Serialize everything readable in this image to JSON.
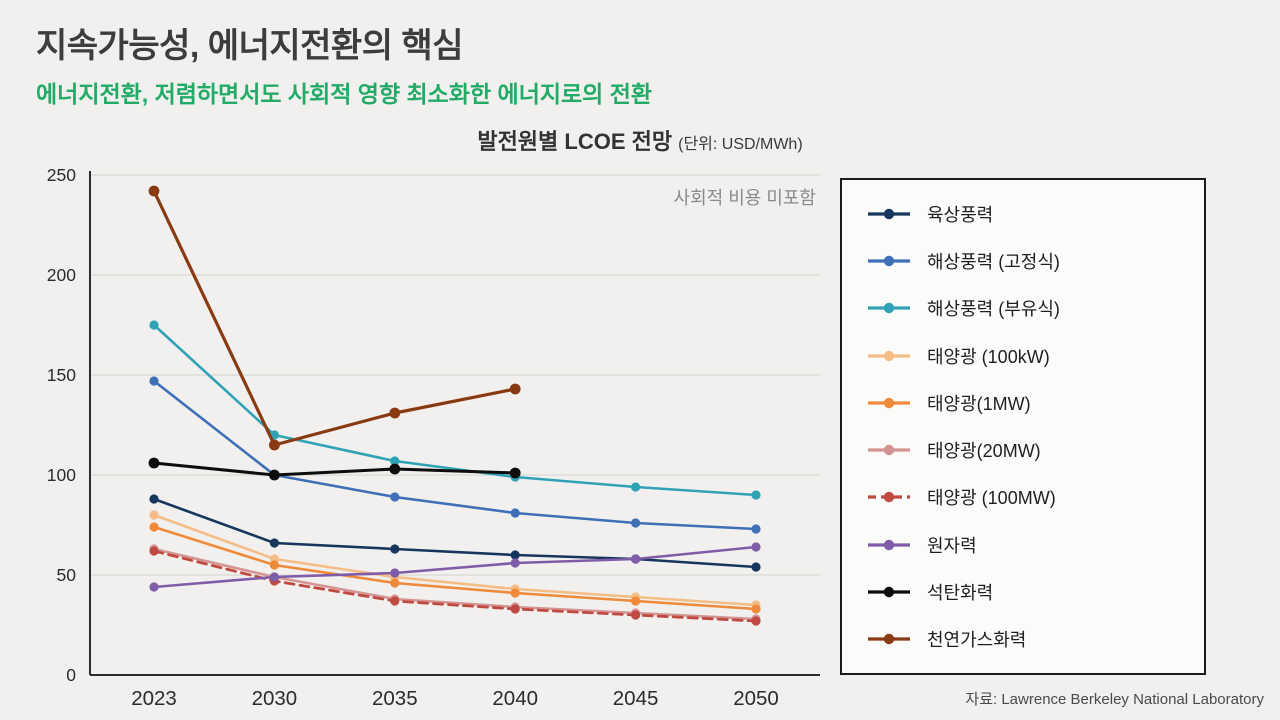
{
  "header": {
    "title": "지속가능성, 에너지전환의 핵심",
    "subtitle": "에너지전환, 저렴하면서도 사회적 영향 최소화한 에너지로의 전환"
  },
  "chart": {
    "title": "발전원별 LCOE 전망",
    "unit": "(단위: USD/MWh)",
    "annotation": "사회적 비용 미포함"
  },
  "source": "자료: Lawrence Berkeley National Laboratory",
  "colors": {
    "background": "#f1f0ee",
    "grid": "#d9d8d5",
    "axis": "#2b2b2b",
    "tick_label": "#2b2b2b",
    "annotation": "#8a8a8a"
  },
  "chart_data": {
    "type": "line",
    "title": "발전원별 LCOE 전망 (단위: USD/MWh)",
    "x": [
      "2023",
      "2030",
      "2035",
      "2040",
      "2045",
      "2050"
    ],
    "ylim": [
      0,
      250
    ],
    "yticks": [
      0,
      50,
      100,
      150,
      200,
      250
    ],
    "grid": true,
    "legend_position": "right",
    "annotation": "사회적 비용 미포함",
    "series": [
      {
        "name": "육상풍력",
        "color": "#17365d",
        "dash": false,
        "lw": 2.6,
        "values": [
          88,
          66,
          63,
          60,
          58,
          54
        ]
      },
      {
        "name": "해상풍력 (고정식)",
        "color": "#3f6fb7",
        "dash": false,
        "lw": 2.6,
        "values": [
          147,
          100,
          89,
          81,
          76,
          73
        ]
      },
      {
        "name": "해상풍력 (부유식)",
        "color": "#2fa3b5",
        "dash": false,
        "lw": 2.6,
        "values": [
          175,
          120,
          107,
          99,
          94,
          90
        ]
      },
      {
        "name": "태양광 (100kW)",
        "color": "#f5bd86",
        "dash": false,
        "lw": 2.6,
        "values": [
          80,
          58,
          49,
          43,
          39,
          35
        ]
      },
      {
        "name": "태양광(1MW)",
        "color": "#ee8a3a",
        "dash": false,
        "lw": 2.6,
        "values": [
          74,
          55,
          46,
          41,
          37,
          33
        ]
      },
      {
        "name": "태양광(20MW)",
        "color": "#d49592",
        "dash": false,
        "lw": 2.6,
        "values": [
          63,
          49,
          38,
          34,
          31,
          28
        ]
      },
      {
        "name": "태양광 (100MW)",
        "color": "#bf4a42",
        "dash": true,
        "lw": 2.8,
        "values": [
          62,
          47,
          37,
          33,
          30,
          27
        ]
      },
      {
        "name": "원자력",
        "color": "#7f5ca8",
        "dash": false,
        "lw": 2.6,
        "values": [
          44,
          49,
          51,
          56,
          58,
          64
        ]
      },
      {
        "name": "석탄화력",
        "color": "#0d0d0d",
        "dash": false,
        "lw": 3.0,
        "values": [
          106,
          100,
          103,
          101,
          null,
          null
        ]
      },
      {
        "name": "천연가스화력",
        "color": "#8a3a12",
        "dash": false,
        "lw": 3.2,
        "values": [
          242,
          115,
          131,
          143,
          null,
          null
        ]
      }
    ]
  }
}
